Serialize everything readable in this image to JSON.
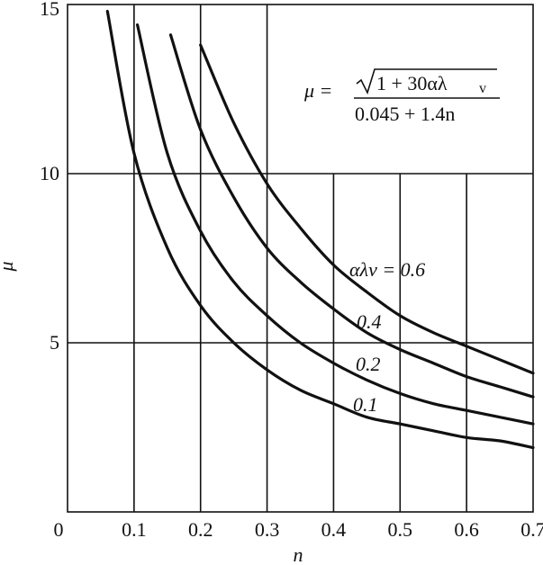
{
  "chart_data": {
    "type": "line",
    "xlabel": "n",
    "ylabel": "μ",
    "xlim": [
      0,
      0.7
    ],
    "ylim": [
      0,
      15
    ],
    "x_ticks": [
      "0",
      "0.1",
      "0.2",
      "0.3",
      "0.4",
      "0.5",
      "0.6",
      "0.7"
    ],
    "y_ticks": [
      "5",
      "10",
      "15"
    ],
    "grid": true,
    "formula": {
      "lhs": "μ =",
      "numerator": "1 + 30αλ",
      "numerator_sub": "v",
      "denominator": "0.045 + 1.4n"
    },
    "series": [
      {
        "name": "αλv = 0.6",
        "x": [
          0.2,
          0.25,
          0.3,
          0.35,
          0.4,
          0.45,
          0.5,
          0.55,
          0.6,
          0.65,
          0.7
        ],
        "y": [
          13.8,
          11.5,
          9.7,
          8.4,
          7.3,
          6.5,
          5.8,
          5.3,
          4.9,
          4.5,
          4.1
        ]
      },
      {
        "name": "0.4",
        "x": [
          0.155,
          0.2,
          0.25,
          0.3,
          0.35,
          0.4,
          0.45,
          0.5,
          0.55,
          0.6,
          0.65,
          0.7
        ],
        "y": [
          14.1,
          11.3,
          9.3,
          7.8,
          6.8,
          6.0,
          5.3,
          4.8,
          4.4,
          4.0,
          3.7,
          3.4
        ]
      },
      {
        "name": "0.2",
        "x": [
          0.105,
          0.15,
          0.2,
          0.25,
          0.3,
          0.35,
          0.4,
          0.45,
          0.5,
          0.55,
          0.6,
          0.65,
          0.7
        ],
        "y": [
          14.4,
          10.6,
          8.3,
          6.8,
          5.8,
          5.0,
          4.4,
          3.9,
          3.5,
          3.2,
          3.0,
          2.8,
          2.6
        ]
      },
      {
        "name": "0.1",
        "x": [
          0.06,
          0.1,
          0.15,
          0.2,
          0.25,
          0.3,
          0.35,
          0.4,
          0.45,
          0.5,
          0.55,
          0.6,
          0.65,
          0.7
        ],
        "y": [
          14.8,
          10.6,
          7.8,
          6.1,
          5.0,
          4.2,
          3.6,
          3.2,
          2.8,
          2.6,
          2.4,
          2.2,
          2.1,
          1.9
        ]
      }
    ],
    "curve_labels": [
      "αλv = 0.6",
      "0.4",
      "0.2",
      "0.1"
    ]
  }
}
